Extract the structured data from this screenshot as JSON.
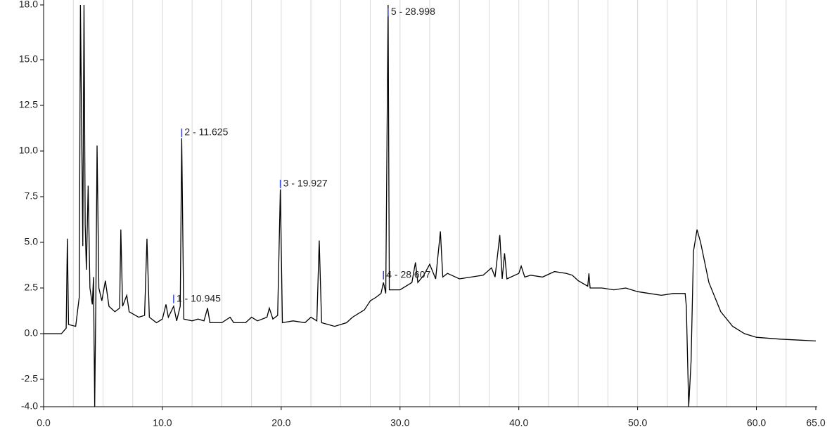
{
  "chart_data": {
    "type": "line",
    "color": "#000000",
    "xlim": [
      0,
      65
    ],
    "ylim": [
      -4,
      18
    ],
    "xticks": [
      {
        "value": 0,
        "label": "0.0"
      },
      {
        "value": 10,
        "label": "10.0"
      },
      {
        "value": 20,
        "label": "20.0"
      },
      {
        "value": 30,
        "label": "30.0"
      },
      {
        "value": 40,
        "label": "40.0"
      },
      {
        "value": 50,
        "label": "50.0"
      },
      {
        "value": 60,
        "label": "60.0"
      },
      {
        "value": 65,
        "label": "65.0"
      }
    ],
    "yticks": [
      {
        "value": -4,
        "label": "-4.0"
      },
      -2.5,
      {
        "value": 0,
        "label": "0.0"
      },
      2.5,
      {
        "value": 5,
        "label": "5.0"
      },
      7.5,
      {
        "value": 10,
        "label": "10.0"
      },
      12.5,
      {
        "value": 15,
        "label": "15.0"
      },
      {
        "value": 18,
        "label": "18.0"
      }
    ],
    "xgrid": [
      2.5,
      5,
      7.5,
      10,
      12.5,
      15,
      17.5,
      20,
      22.5,
      25,
      27.5,
      30,
      32.5,
      35,
      37.5,
      40,
      42.5,
      45,
      47.5,
      50,
      52.5,
      55,
      57.5,
      60,
      62.5
    ],
    "x": [
      0,
      1.5,
      1.9,
      2.0,
      2.1,
      2.7,
      3.0,
      3.1,
      3.3,
      3.4,
      3.5,
      3.6,
      3.75,
      3.9,
      4.1,
      4.2,
      4.3,
      4.4,
      4.5,
      4.65,
      4.9,
      5.2,
      5.5,
      6.0,
      6.4,
      6.5,
      6.65,
      7.0,
      7.2,
      8.0,
      8.5,
      8.7,
      8.9,
      9.5,
      10.0,
      10.3,
      10.5,
      10.945,
      11.2,
      11.5,
      11.625,
      11.8,
      12.5,
      13.0,
      13.5,
      13.8,
      14.0,
      15,
      15.7,
      16,
      17,
      17.5,
      18,
      18.8,
      19.0,
      19.3,
      19.7,
      19.927,
      20.1,
      21,
      22,
      22.5,
      23.0,
      23.2,
      23.4,
      24.5,
      25.5,
      26,
      27,
      27.5,
      28,
      28.4,
      28.607,
      28.8,
      28.998,
      29.1,
      30,
      31,
      31.3,
      31.5,
      32,
      32.5,
      33,
      33.4,
      33.6,
      34,
      35,
      36,
      37,
      37.7,
      38,
      38.4,
      38.6,
      38.8,
      39,
      40,
      40.2,
      40.5,
      41,
      42,
      43,
      44,
      44.5,
      45,
      45.8,
      45.9,
      46,
      47,
      48,
      49,
      50,
      51,
      52,
      53,
      54,
      54.1,
      54.3,
      54.5,
      54.7,
      55,
      55.3,
      56,
      57,
      58,
      59,
      60,
      62,
      65
    ],
    "values": [
      0,
      0,
      0.3,
      5.2,
      0.5,
      0.4,
      2,
      18,
      4.8,
      18,
      6,
      3.5,
      8.1,
      2.5,
      1.6,
      3.1,
      -4,
      2,
      10.3,
      2.5,
      1.8,
      2.9,
      1.5,
      1.2,
      1.4,
      5.7,
      1.5,
      2.1,
      1.2,
      0.9,
      1.0,
      5.2,
      0.9,
      0.6,
      0.8,
      1.6,
      0.9,
      1.5,
      0.7,
      1.5,
      10.7,
      0.8,
      0.7,
      0.8,
      0.7,
      1.4,
      0.6,
      0.6,
      0.9,
      0.6,
      0.6,
      0.9,
      0.7,
      0.9,
      1.4,
      0.8,
      1.0,
      7.9,
      0.6,
      0.7,
      0.6,
      0.9,
      0.7,
      5.1,
      0.6,
      0.4,
      0.6,
      0.9,
      1.3,
      1.8,
      2.0,
      2.2,
      2.8,
      2.2,
      18,
      2.4,
      2.4,
      2.8,
      3.9,
      2.8,
      3.2,
      3.8,
      3.0,
      5.6,
      3.1,
      3.3,
      3.0,
      3.1,
      3.2,
      3.6,
      3.1,
      5.4,
      3.0,
      4.4,
      3.0,
      3.3,
      3.7,
      3.1,
      3.2,
      3.1,
      3.4,
      3.3,
      3.2,
      2.9,
      2.6,
      3.3,
      2.5,
      2.5,
      2.4,
      2.5,
      2.3,
      2.2,
      2.1,
      2.2,
      2.2,
      1.5,
      -4,
      -1.5,
      4.5,
      5.7,
      5.0,
      2.8,
      1.2,
      0.4,
      0.0,
      -0.2,
      -0.3,
      -0.4
    ],
    "annotations": [
      {
        "text": "1 - 10.945",
        "x": 10.945,
        "y": 1.9
      },
      {
        "text": "2 - 11.625",
        "x": 11.625,
        "y": 11.0
      },
      {
        "text": "3 - 19.927",
        "x": 19.927,
        "y": 8.2
      },
      {
        "text": "4 - 28.607",
        "x": 28.607,
        "y": 3.2
      },
      {
        "text": "5 - 28.998",
        "x": 28.998,
        "y": 17.6
      }
    ]
  }
}
